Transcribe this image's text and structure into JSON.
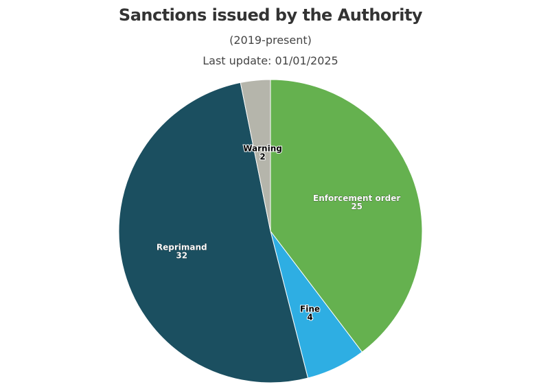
{
  "chart_data": {
    "type": "pie",
    "title": "Sanctions issued by the Authority",
    "subtitle": "(2019-present)",
    "note": "Last update: 01/01/2025",
    "slices": [
      {
        "label": "Enforcement order",
        "value": 25,
        "color": "#65b14f"
      },
      {
        "label": "Fine",
        "value": 4,
        "color": "#2eaee3"
      },
      {
        "label": "Reprimand",
        "value": 32,
        "color": "#1b4f60"
      },
      {
        "label": "Warning",
        "value": 2,
        "color": "#b5b5ab"
      }
    ]
  }
}
